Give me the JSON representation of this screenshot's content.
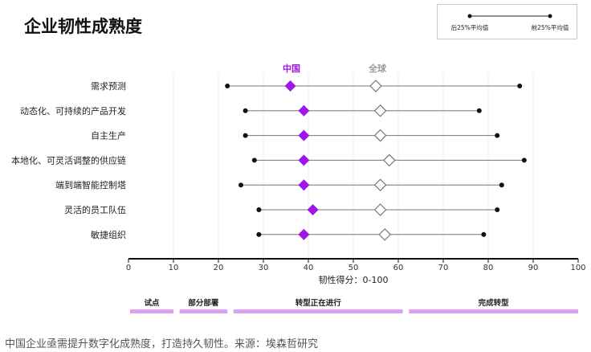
{
  "caption": "中国企业亟需提升数字化成熟度，打造持久韧性。来源：埃森哲研究",
  "chart_data": {
    "type": "dumbbell",
    "title": "企业韧性成熟度",
    "xlabel": "韧性得分：0-100",
    "xlim": [
      0,
      100
    ],
    "xticks": [
      0,
      10,
      20,
      30,
      40,
      50,
      60,
      70,
      80,
      90,
      100
    ],
    "grid": true,
    "legend": {
      "position": "top-right",
      "entries": [
        "后25%平均值",
        "前25%平均值"
      ]
    },
    "series_headers": {
      "china": "中国",
      "global": "全球"
    },
    "colors": {
      "china": "#a016e6",
      "global": "#ffffff",
      "endpoint": "#111111",
      "stage_band": "#dc9ff4"
    },
    "categories": [
      "需求预测",
      "动态化、可持续的产品开发",
      "自主生产",
      "本地化、可灵活调整的供应链",
      "端到端智能控制塔",
      "灵活的员工队伍",
      "敏捷组织"
    ],
    "series": [
      {
        "name": "后25%平均值",
        "values": [
          22,
          26,
          26,
          28,
          25,
          29,
          29
        ]
      },
      {
        "name": "前25%平均值",
        "values": [
          87,
          78,
          82,
          88,
          83,
          82,
          79
        ]
      },
      {
        "name": "中国",
        "values": [
          36,
          39,
          39,
          39,
          39,
          41,
          39
        ]
      },
      {
        "name": "全球",
        "values": [
          55,
          56,
          56,
          58,
          56,
          56,
          57
        ]
      }
    ],
    "stages": [
      {
        "label": "试点",
        "range": [
          0,
          10
        ]
      },
      {
        "label": "部分部署",
        "range": [
          11,
          22
        ]
      },
      {
        "label": "转型正在进行",
        "range": [
          23,
          61
        ]
      },
      {
        "label": "完成转型",
        "range": [
          62,
          100
        ]
      }
    ]
  }
}
